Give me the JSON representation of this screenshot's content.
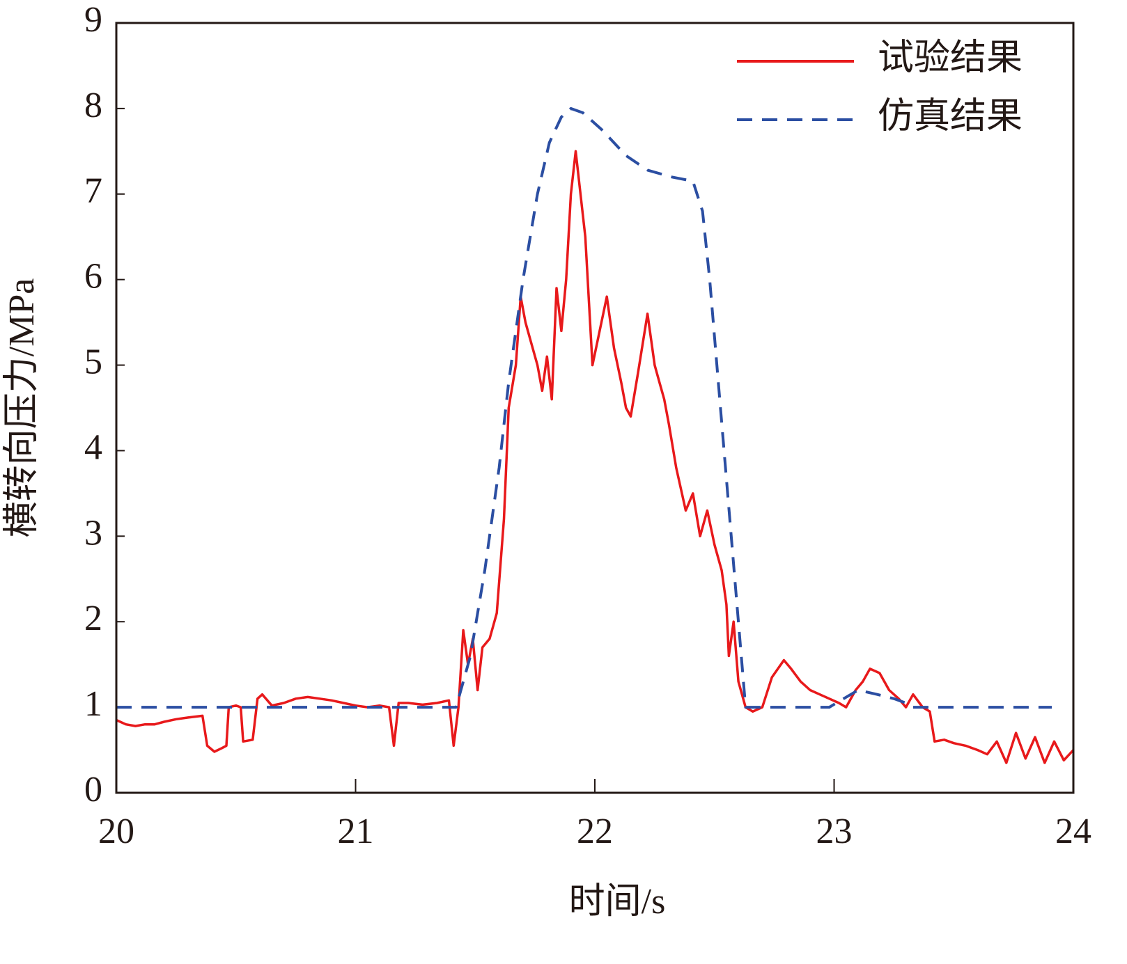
{
  "chart_data": {
    "type": "line",
    "xlabel": "时间/s",
    "ylabel": "横转向压力/MPa",
    "xlim": [
      20,
      24
    ],
    "xticks": [
      20,
      21,
      22,
      23,
      24
    ],
    "ylim": [
      0,
      9
    ],
    "yticks": [
      0,
      1,
      2,
      3,
      4,
      5,
      6,
      7,
      8,
      9
    ],
    "legend": "upper right",
    "series": [
      {
        "name": "试验结果",
        "color": "#e8191b",
        "dash": "solid",
        "x": [
          20.0,
          20.04,
          20.08,
          20.12,
          20.16,
          20.2,
          20.25,
          20.3,
          20.36,
          20.38,
          20.41,
          20.44,
          20.46,
          20.47,
          20.5,
          20.52,
          20.53,
          20.57,
          20.59,
          20.61,
          20.65,
          20.7,
          20.75,
          20.8,
          20.85,
          20.9,
          20.95,
          21.0,
          21.05,
          21.1,
          21.14,
          21.16,
          21.18,
          21.22,
          21.28,
          21.34,
          21.39,
          21.41,
          21.43,
          21.45,
          21.47,
          21.49,
          21.51,
          21.53,
          21.56,
          21.59,
          21.62,
          21.64,
          21.67,
          21.69,
          21.71,
          21.74,
          21.76,
          21.78,
          21.8,
          21.82,
          21.84,
          21.86,
          21.88,
          21.9,
          21.92,
          21.94,
          21.96,
          21.99,
          22.02,
          22.05,
          22.08,
          22.11,
          22.13,
          22.15,
          22.18,
          22.22,
          22.25,
          22.27,
          22.29,
          22.31,
          22.34,
          22.38,
          22.41,
          22.44,
          22.47,
          22.5,
          22.53,
          22.55,
          22.56,
          22.58,
          22.6,
          22.63,
          22.66,
          22.7,
          22.74,
          22.79,
          22.82,
          22.86,
          22.9,
          22.94,
          22.98,
          23.02,
          23.05,
          23.09,
          23.12,
          23.15,
          23.19,
          23.23,
          23.27,
          23.3,
          23.33,
          23.37,
          23.4,
          23.42,
          23.46,
          23.5,
          23.55,
          23.6,
          23.64,
          23.68,
          23.72,
          23.76,
          23.8,
          23.84,
          23.88,
          23.92,
          23.96,
          24.0
        ],
        "values": [
          0.85,
          0.8,
          0.78,
          0.8,
          0.8,
          0.83,
          0.86,
          0.88,
          0.9,
          0.55,
          0.48,
          0.52,
          0.55,
          1.0,
          1.02,
          1.0,
          0.6,
          0.62,
          1.1,
          1.15,
          1.02,
          1.05,
          1.1,
          1.12,
          1.1,
          1.08,
          1.05,
          1.02,
          1.0,
          1.02,
          1.0,
          0.55,
          1.05,
          1.05,
          1.03,
          1.05,
          1.08,
          0.55,
          1.0,
          1.9,
          1.5,
          1.8,
          1.2,
          1.7,
          1.8,
          2.1,
          3.2,
          4.5,
          5.0,
          5.8,
          5.5,
          5.2,
          5.0,
          4.7,
          5.1,
          4.6,
          5.9,
          5.4,
          6.0,
          7.0,
          7.5,
          7.0,
          6.5,
          5.0,
          5.4,
          5.8,
          5.2,
          4.8,
          4.5,
          4.4,
          4.9,
          5.6,
          5.0,
          4.8,
          4.6,
          4.3,
          3.8,
          3.3,
          3.5,
          3.0,
          3.3,
          2.9,
          2.6,
          2.2,
          1.6,
          2.0,
          1.3,
          1.0,
          0.95,
          1.0,
          1.35,
          1.55,
          1.45,
          1.3,
          1.2,
          1.15,
          1.1,
          1.05,
          1.0,
          1.2,
          1.3,
          1.45,
          1.4,
          1.2,
          1.1,
          1.0,
          1.15,
          1.0,
          0.95,
          0.6,
          0.62,
          0.58,
          0.55,
          0.5,
          0.45,
          0.6,
          0.35,
          0.7,
          0.4,
          0.65,
          0.35,
          0.6,
          0.38,
          0.5
        ]
      },
      {
        "name": "仿真结果",
        "color": "#2b4ea2",
        "dash": "dashed",
        "x": [
          20.0,
          21.42,
          21.48,
          21.54,
          21.6,
          21.64,
          21.7,
          21.76,
          21.81,
          21.86,
          21.9,
          21.95,
          22.03,
          22.13,
          22.22,
          22.32,
          22.41,
          22.45,
          22.48,
          22.51,
          22.54,
          22.57,
          22.6,
          22.63,
          22.98,
          23.04,
          23.1,
          23.18,
          23.25,
          23.3,
          23.33,
          23.91
        ],
        "values": [
          1.0,
          1.0,
          1.6,
          2.6,
          3.8,
          4.8,
          6.0,
          7.0,
          7.6,
          7.9,
          8.0,
          7.95,
          7.75,
          7.45,
          7.28,
          7.2,
          7.15,
          6.8,
          6.0,
          5.0,
          4.0,
          3.0,
          2.0,
          1.0,
          1.0,
          1.1,
          1.2,
          1.15,
          1.1,
          1.05,
          1.0,
          1.0
        ]
      }
    ]
  }
}
